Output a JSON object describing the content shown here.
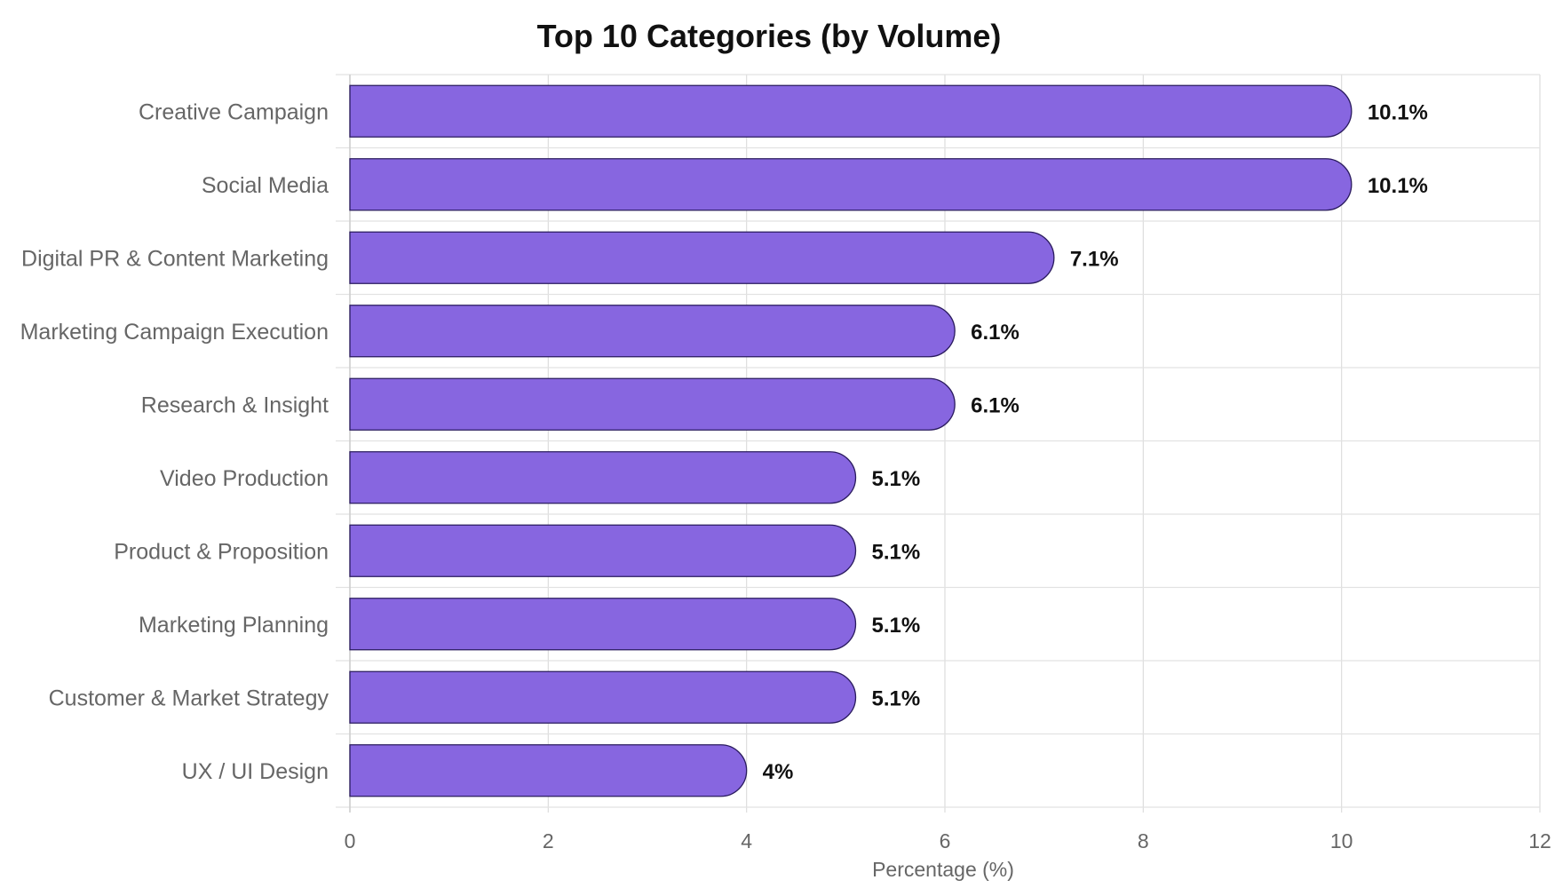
{
  "chart_data": {
    "type": "bar",
    "orientation": "horizontal",
    "title": "Top 10 Categories (by Volume)",
    "xlabel": "Percentage (%)",
    "ylabel": "",
    "xlim": [
      0,
      12
    ],
    "x_ticks": [
      "0",
      "2",
      "4",
      "6",
      "8",
      "10",
      "12"
    ],
    "grid": true,
    "legend": "none",
    "bar_color": "#8766e0",
    "bar_edge_color": "#2a1b5e",
    "categories": [
      "Creative Campaign",
      "Social Media",
      "Digital PR & Content Marketing",
      "Marketing Campaign Execution",
      "Research & Insight",
      "Video Production",
      "Product & Proposition",
      "Marketing Planning",
      "Customer & Market Strategy",
      "UX / UI Design"
    ],
    "values": [
      10.1,
      10.1,
      7.1,
      6.1,
      6.1,
      5.1,
      5.1,
      5.1,
      5.1,
      4
    ],
    "value_labels": [
      "10.1%",
      "10.1%",
      "7.1%",
      "6.1%",
      "6.1%",
      "5.1%",
      "5.1%",
      "5.1%",
      "5.1%",
      "4%"
    ]
  }
}
